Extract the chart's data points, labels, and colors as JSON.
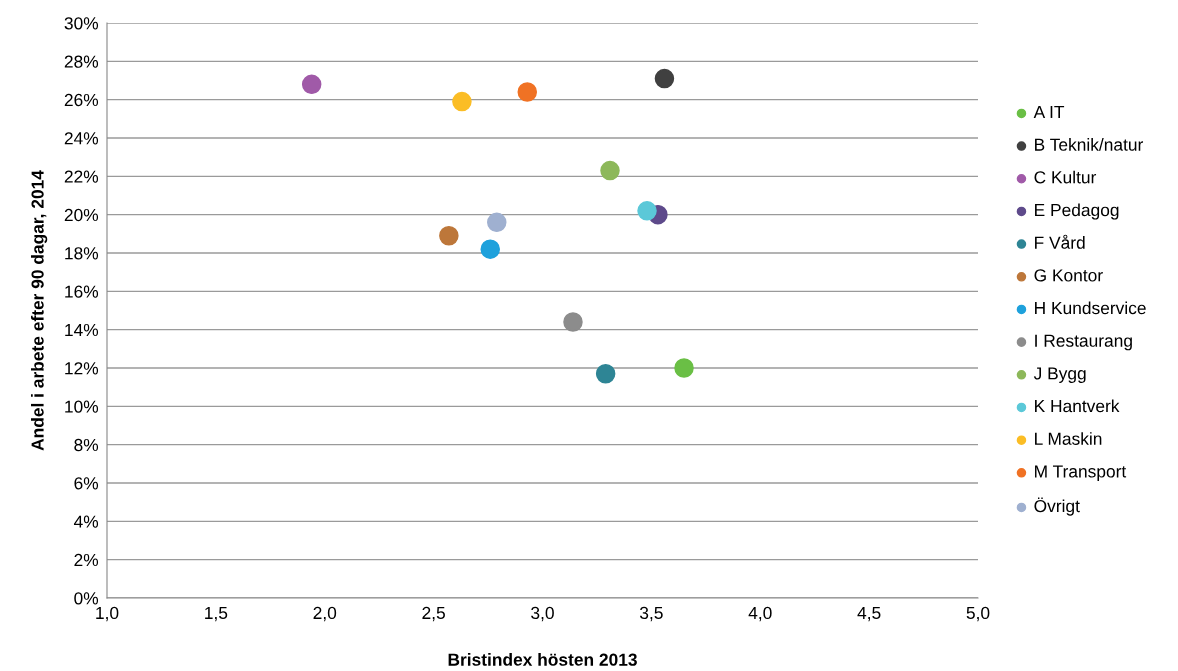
{
  "chart_data": {
    "type": "scatter",
    "xlabel": "Bristindex hösten 2013",
    "ylabel": "Andel i arbete efter 90 dagar, 2014",
    "xlim": [
      1.0,
      5.0
    ],
    "ylim": [
      0,
      30
    ],
    "xticks": [
      {
        "value": 1.0,
        "label": "1,0"
      },
      {
        "value": 1.5,
        "label": "1,5"
      },
      {
        "value": 2.0,
        "label": "2,0"
      },
      {
        "value": 2.5,
        "label": "2,5"
      },
      {
        "value": 3.0,
        "label": "3,0"
      },
      {
        "value": 3.5,
        "label": "3,5"
      },
      {
        "value": 4.0,
        "label": "4,0"
      },
      {
        "value": 4.5,
        "label": "4,5"
      },
      {
        "value": 5.0,
        "label": "5,0"
      }
    ],
    "yticks": [
      {
        "value": 0,
        "label": "0%"
      },
      {
        "value": 2,
        "label": "2%"
      },
      {
        "value": 4,
        "label": "4%"
      },
      {
        "value": 6,
        "label": "6%"
      },
      {
        "value": 8,
        "label": "8%"
      },
      {
        "value": 10,
        "label": "10%"
      },
      {
        "value": 12,
        "label": "12%"
      },
      {
        "value": 14,
        "label": "14%"
      },
      {
        "value": 16,
        "label": "16%"
      },
      {
        "value": 18,
        "label": "18%"
      },
      {
        "value": 20,
        "label": "20%"
      },
      {
        "value": 22,
        "label": "22%"
      },
      {
        "value": 24,
        "label": "24%"
      },
      {
        "value": 26,
        "label": "26%"
      },
      {
        "value": 28,
        "label": "28%"
      },
      {
        "value": 30,
        "label": "30%"
      }
    ],
    "grid": "y",
    "legend": "right",
    "marker": "circle",
    "series": [
      {
        "name": "A IT",
        "color": "#6abf45",
        "x": [
          3.65
        ],
        "values": [
          12.0
        ]
      },
      {
        "name": "B Teknik/natur",
        "color": "#404040",
        "x": [
          3.56
        ],
        "values": [
          27.1
        ]
      },
      {
        "name": "C Kultur",
        "color": "#a05aa8",
        "x": [
          1.94
        ],
        "values": [
          26.8
        ]
      },
      {
        "name": "E Pedagog",
        "color": "#5e4a8b",
        "x": [
          3.53
        ],
        "values": [
          20.0
        ]
      },
      {
        "name": "F Vård",
        "color": "#2e8595",
        "x": [
          3.29
        ],
        "values": [
          11.7
        ]
      },
      {
        "name": "G Kontor",
        "color": "#bd773a",
        "x": [
          2.57
        ],
        "values": [
          18.9
        ]
      },
      {
        "name": "H Kundservice",
        "color": "#1ea1dc",
        "x": [
          2.76
        ],
        "values": [
          18.2
        ]
      },
      {
        "name": "I Restaurang",
        "color": "#8c8c8c",
        "x": [
          3.14
        ],
        "values": [
          14.4
        ]
      },
      {
        "name": "J Bygg",
        "color": "#8db85a",
        "x": [
          3.31
        ],
        "values": [
          22.3
        ]
      },
      {
        "name": "K Hantverk",
        "color": "#5bc8d8",
        "x": [
          3.48
        ],
        "values": [
          20.2
        ]
      },
      {
        "name": "L Maskin",
        "color": "#fbbd25",
        "x": [
          2.63
        ],
        "values": [
          25.9
        ]
      },
      {
        "name": "M Transport",
        "color": "#f07224",
        "x": [
          2.93
        ],
        "values": [
          26.4
        ]
      },
      {
        "name": "Övrigt",
        "color": "#9fb0d0",
        "x": [
          2.79
        ],
        "values": [
          19.6
        ]
      }
    ]
  }
}
